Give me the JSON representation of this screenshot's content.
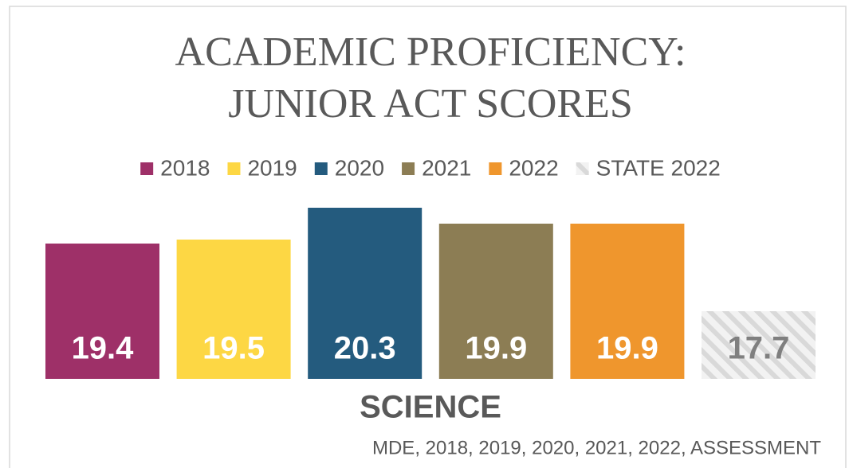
{
  "chart_data": {
    "type": "bar",
    "title": "ACADEMIC PROFICIENCY:",
    "subtitle": "JUNIOR ACT SCORES",
    "categories": [
      "SCIENCE"
    ],
    "series": [
      {
        "name": "2018",
        "color": "#9e3068",
        "values": [
          19.4
        ]
      },
      {
        "name": "2019",
        "color": "#fdd744",
        "values": [
          19.5
        ]
      },
      {
        "name": "2020",
        "color": "#245b7e",
        "values": [
          20.3
        ]
      },
      {
        "name": "2021",
        "color": "#8c7d54",
        "values": [
          19.9
        ]
      },
      {
        "name": "2022",
        "color": "#ef962d",
        "values": [
          19.9
        ]
      },
      {
        "name": "STATE 2022",
        "color": "#d9d9d9",
        "hatch": true,
        "values": [
          17.7
        ]
      }
    ],
    "ylim": [
      16,
      20.5
    ],
    "source": "MDE, 2018, 2019, 2020, 2021, 2022, ASSESSMENT"
  }
}
